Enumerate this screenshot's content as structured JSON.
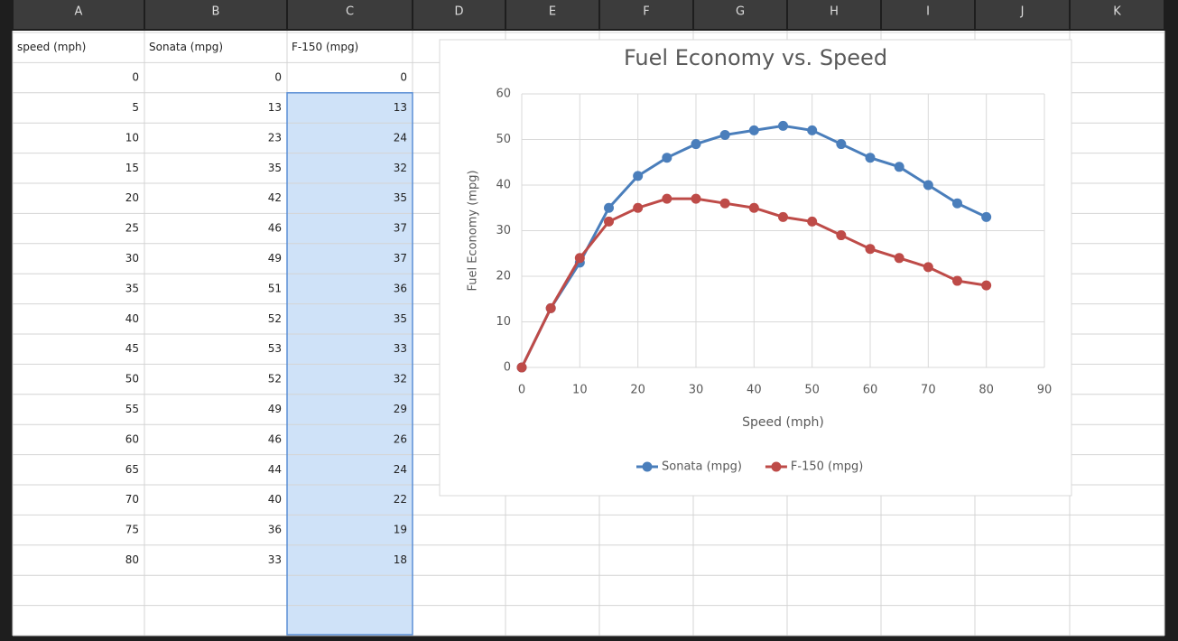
{
  "columns": [
    "A",
    "B",
    "C",
    "D",
    "E",
    "F",
    "G",
    "H",
    "I",
    "J",
    "K"
  ],
  "table": {
    "header": [
      "speed (mph)",
      "Sonata (mpg)",
      "F-150 (mpg)"
    ],
    "rows": [
      [
        0,
        0,
        0
      ],
      [
        5,
        13,
        13
      ],
      [
        10,
        23,
        24
      ],
      [
        15,
        35,
        32
      ],
      [
        20,
        42,
        35
      ],
      [
        25,
        46,
        37
      ],
      [
        30,
        49,
        37
      ],
      [
        35,
        51,
        36
      ],
      [
        40,
        52,
        35
      ],
      [
        45,
        53,
        33
      ],
      [
        50,
        52,
        32
      ],
      [
        55,
        49,
        29
      ],
      [
        60,
        46,
        26
      ],
      [
        65,
        44,
        24
      ],
      [
        70,
        40,
        22
      ],
      [
        75,
        36,
        19
      ],
      [
        80,
        33,
        18
      ]
    ]
  },
  "chart_data": {
    "type": "line",
    "title": "Fuel Economy vs. Speed",
    "x_label": "Speed (mph)",
    "y_label": "Fuel Economy (mpg)",
    "x": [
      0,
      5,
      10,
      15,
      20,
      25,
      30,
      35,
      40,
      45,
      50,
      55,
      60,
      65,
      70,
      75,
      80
    ],
    "series": [
      {
        "name": "Sonata (mpg)",
        "color": "#4a7ebb",
        "values": [
          0,
          13,
          23,
          35,
          42,
          46,
          49,
          51,
          52,
          53,
          52,
          49,
          46,
          44,
          40,
          36,
          33
        ]
      },
      {
        "name": "F-150 (mpg)",
        "color": "#be4b48",
        "values": [
          0,
          13,
          24,
          32,
          35,
          37,
          37,
          36,
          35,
          33,
          32,
          29,
          26,
          24,
          22,
          19,
          18
        ]
      }
    ],
    "xlim": [
      0,
      90
    ],
    "xticks": [
      0,
      10,
      20,
      30,
      40,
      50,
      60,
      70,
      80,
      90
    ],
    "ylim": [
      0,
      60
    ],
    "yticks": [
      0,
      10,
      20,
      30,
      40,
      50,
      60
    ],
    "grid": true,
    "legend": "bottom"
  }
}
